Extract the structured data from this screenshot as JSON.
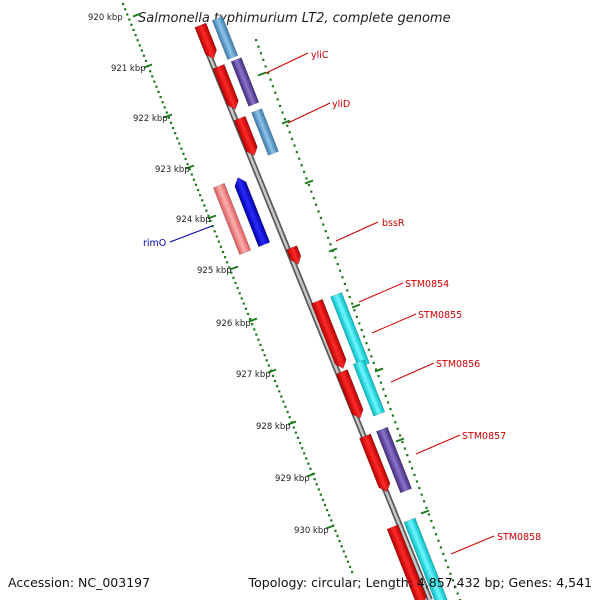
{
  "title": "Salmonella typhimurium LT2, complete genome",
  "footer": {
    "accession": "Accession: NC_003197",
    "summary": "Topology: circular; Length: 4,857,432 bp; Genes: 4,541"
  },
  "scale_labels": [
    "920 kbp",
    "921 kbp",
    "922 kbp",
    "923 kbp",
    "924 kbp",
    "925 kbp",
    "926 kbp",
    "927 kbp",
    "928 kbp",
    "929 kbp",
    "930 kbp"
  ],
  "gene_labels": [
    {
      "name": "yliC",
      "color": "#cc0000"
    },
    {
      "name": "yliD",
      "color": "#cc0000"
    },
    {
      "name": "bssR",
      "color": "#cc0000"
    },
    {
      "name": "rimO",
      "color": "#0000aa"
    },
    {
      "name": "STM0854",
      "color": "#cc0000"
    },
    {
      "name": "STM0855",
      "color": "#cc0000"
    },
    {
      "name": "STM0856",
      "color": "#cc0000"
    },
    {
      "name": "STM0857",
      "color": "#cc0000"
    },
    {
      "name": "STM0858",
      "color": "#cc0000"
    }
  ],
  "colors": {
    "forward_gene": "#ff0000",
    "reverse_gene": "#0000ff",
    "backbone": "#888888",
    "ticks": "#1a7a1a",
    "blast_light_blue": "#5fa8d8",
    "blast_purple": "#6a4fa8",
    "blast_cyan": "#00e5ee",
    "blast_pink": "#f07d7d"
  }
}
